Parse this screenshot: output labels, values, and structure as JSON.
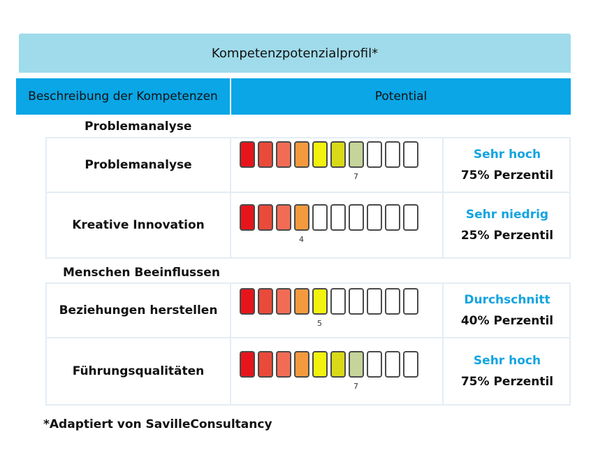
{
  "title": "Kompetenzpotenzialprofil*",
  "columns": {
    "left": "Beschreibung der Kompetenzen",
    "right": "Potential"
  },
  "scale_colors": [
    "#e8141c",
    "#ea4a3a",
    "#f26c55",
    "#f39a3e",
    "#f2f20e",
    "#d9d918",
    "#c4d49a",
    "#ffffff",
    "#ffffff",
    "#ffffff"
  ],
  "scale_max": 10,
  "sections": [
    {
      "label": "Problemanalyse",
      "rows": [
        {
          "name": "Problemanalyse",
          "score": 7,
          "score_label": "7",
          "status": "Sehr hoch",
          "percentile": "75% Perzentil"
        },
        {
          "name": "Kreative Innovation",
          "score": 4,
          "score_label": "4",
          "status": "Sehr niedrig",
          "percentile": "25% Perzentil"
        }
      ]
    },
    {
      "label": "Menschen Beeinflussen",
      "rows": [
        {
          "name": "Beziehungen herstellen",
          "score": 5,
          "score_label": "5",
          "status": "Durchschnitt",
          "percentile": "40% Perzentil"
        },
        {
          "name": "Führungsqualitäten",
          "score": 7,
          "score_label": "7",
          "status": "Sehr hoch",
          "percentile": "75% Perzentil"
        }
      ]
    }
  ],
  "footnote": "*Adaptiert von SavilleConsultancy"
}
